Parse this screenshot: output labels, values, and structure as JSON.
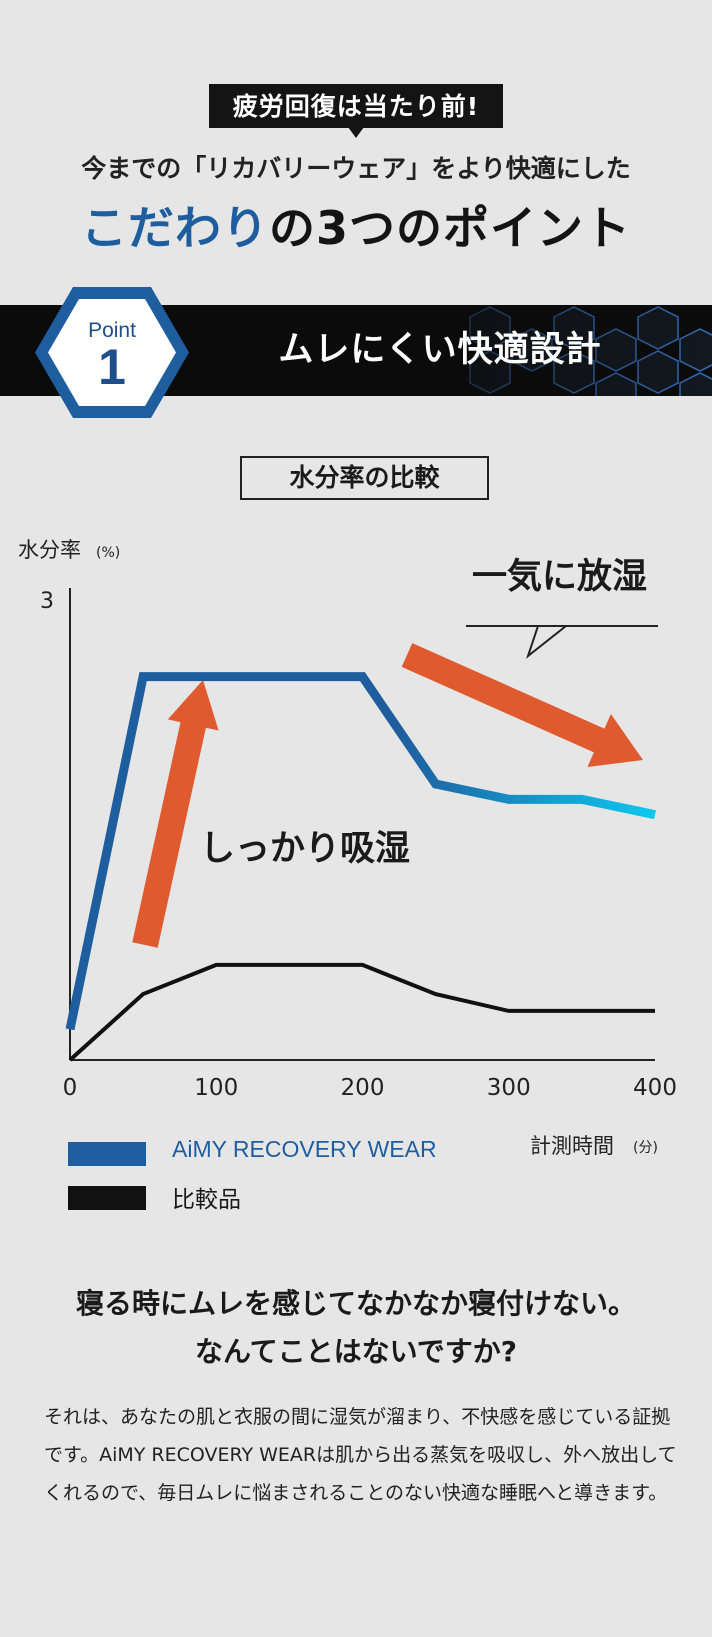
{
  "header": {
    "badge": "疲労回復は当たり前!",
    "subtitle": "今までの「リカバリーウェア」をより快適にした",
    "headline_highlight": "こだわり",
    "headline_rest": "の3つのポイント"
  },
  "point": {
    "label": "Point",
    "number": "1",
    "title": "ムレにくい快適設計"
  },
  "chart_title": "水分率の比較",
  "annotations": {
    "release": "一気に放湿",
    "absorb": "しっかり吸湿"
  },
  "legend": {
    "product": "AiMY RECOVERY WEAR",
    "comparison": "比較品"
  },
  "colors": {
    "product": "#1f5e9e",
    "product_gradient_end": "#0ccaf2",
    "comparison": "#111111",
    "arrow": "#e05a30"
  },
  "chart_data": {
    "type": "line",
    "ylabel": "水分率",
    "yunit": "(%)",
    "xlabel": "計測時間",
    "xunit": "(分)",
    "ylim": [
      0,
      3
    ],
    "xlim": [
      0,
      400
    ],
    "yticks": [
      3
    ],
    "xticks": [
      0,
      100,
      200,
      300,
      400
    ],
    "series": [
      {
        "name": "AiMY RECOVERY WEAR",
        "x": [
          0,
          50,
          100,
          150,
          200,
          250,
          300,
          350,
          400
        ],
        "y": [
          0.2,
          2.5,
          2.5,
          2.5,
          2.5,
          1.8,
          1.7,
          1.7,
          1.6
        ]
      },
      {
        "name": "比較品",
        "x": [
          0,
          50,
          100,
          150,
          200,
          250,
          300,
          350,
          400
        ],
        "y": [
          0,
          0.43,
          0.62,
          0.62,
          0.62,
          0.43,
          0.32,
          0.32,
          0.32
        ]
      }
    ]
  },
  "question": {
    "line1": "寝る時にムレを感じてなかなか寝付けない。",
    "line2": "なんてことはないですか?"
  },
  "body_text": "それは、あなたの肌と衣服の間に湿気が溜まり、不快感を感じている証拠です。AiMY RECOVERY WEARは肌から出る蒸気を吸収し、外へ放出してくれるので、毎日ムレに悩まされることのない快適な睡眠へと導きます。"
}
